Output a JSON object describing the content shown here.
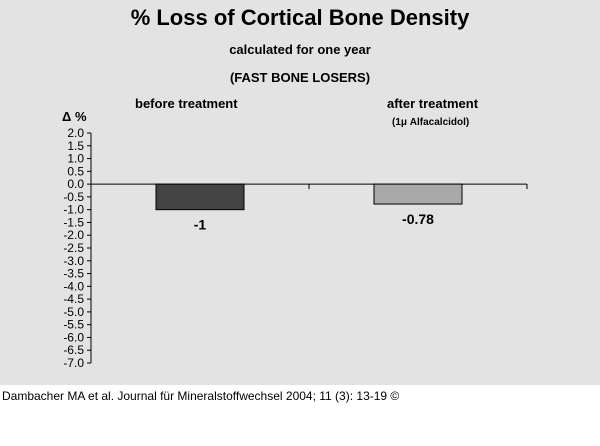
{
  "chart_data": {
    "type": "bar",
    "title": "% Loss of Cortical Bone Density",
    "subtitle": "calculated for one year",
    "subtitle2": "(FAST BONE LOSERS)",
    "ylabel": "Δ %",
    "categories": [
      "before treatment",
      "after treatment"
    ],
    "category_sublabels": [
      "",
      "(1μ Alfacalcidol)"
    ],
    "values": [
      -1,
      -0.78
    ],
    "value_labels": [
      "-1",
      "-0.78"
    ],
    "bar_colors": [
      "#444444",
      "#a9a9a9"
    ],
    "ylim": [
      -7.0,
      2.0
    ],
    "yticks": [
      "2.0",
      "1.5",
      "1.0",
      "0.5",
      "0.0",
      "-0.5",
      "-1.0",
      "-1.5",
      "-2.0",
      "-2.5",
      "-3.0",
      "-3.5",
      "-4.0",
      "-4.5",
      "-5.0",
      "-5.5",
      "-6.0",
      "-6.5",
      "-7.0"
    ],
    "grid": false,
    "legend": "none"
  },
  "source": "Dambacher MA et al. Journal für Mineralstoffwechsel 2004; 11 (3): 13-19 ©",
  "colors": {
    "background": "#e3e3e3",
    "axis": "#000000"
  }
}
